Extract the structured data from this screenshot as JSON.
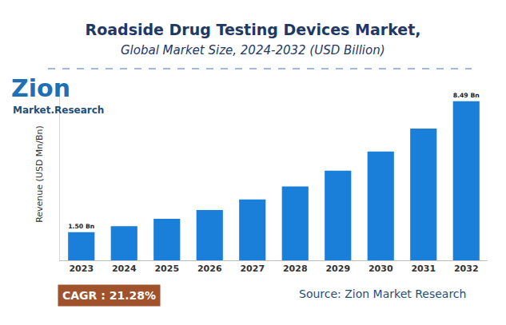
{
  "chart_data": {
    "type": "bar",
    "title": "Roadside Drug Testing Devices Market,",
    "subtitle": "Global Market Size, 2024-2032 (USD Billion)",
    "y_label": "Revenue (USD Mn/Bn)",
    "categories": [
      "2023",
      "2024",
      "2025",
      "2026",
      "2027",
      "2028",
      "2029",
      "2030",
      "2031",
      "2032"
    ],
    "values": [
      1.5,
      1.82,
      2.21,
      2.68,
      3.25,
      3.94,
      4.78,
      5.8,
      7.03,
      8.49
    ],
    "value_labels": [
      "1.50 Bn",
      null,
      null,
      null,
      null,
      null,
      null,
      null,
      null,
      "8.49 Bn"
    ],
    "data_labels": true,
    "color": "#1a7fd9",
    "ylim": [
      0,
      9.2
    ],
    "tick_labels": "x",
    "grid": false,
    "annotations": [
      "CAGR : 21.28%",
      "Source: Zion Market Research",
      "Zion",
      "Market.Research"
    ]
  }
}
